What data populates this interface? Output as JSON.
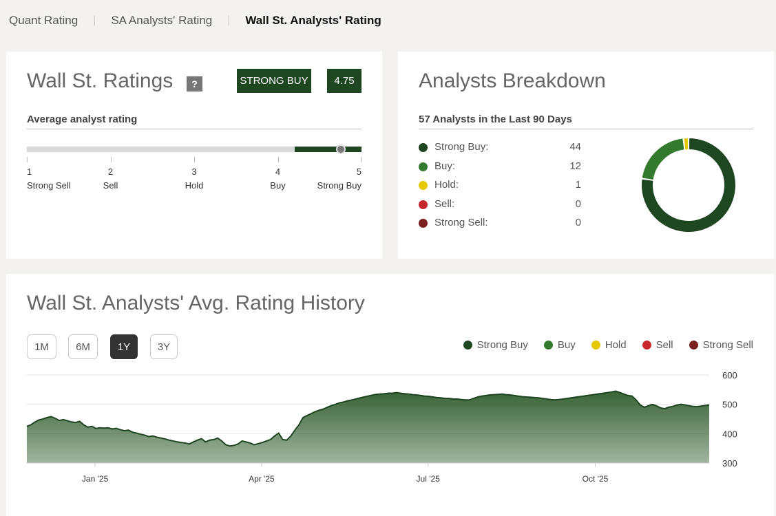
{
  "tabs": [
    {
      "label": "Quant Rating",
      "active": false
    },
    {
      "label": "SA Analysts' Rating",
      "active": false
    },
    {
      "label": "Wall St. Analysts' Rating",
      "active": true
    }
  ],
  "ratings": {
    "title": "Wall St. Ratings",
    "help": "?",
    "rating_label": "STRONG BUY",
    "rating_score": "4.75",
    "score_value": 4.75,
    "avg_heading": "Average analyst rating",
    "scale": [
      {
        "num": "1",
        "name": "Strong Sell"
      },
      {
        "num": "2",
        "name": "Sell"
      },
      {
        "num": "3",
        "name": "Hold"
      },
      {
        "num": "4",
        "name": "Buy"
      },
      {
        "num": "5",
        "name": "Strong Buy"
      }
    ],
    "fill_start": 4.2,
    "fill_color": "#1e4620"
  },
  "breakdown": {
    "title": "Analysts Breakdown",
    "heading": "57 Analysts in the Last 90 Days",
    "items": [
      {
        "label": "Strong Buy:",
        "count": "44",
        "value": 44,
        "color": "#1e4620"
      },
      {
        "label": "Buy:",
        "count": "12",
        "value": 12,
        "color": "#337a2f"
      },
      {
        "label": "Hold:",
        "count": "1",
        "value": 1,
        "color": "#e6c800"
      },
      {
        "label": "Sell:",
        "count": "0",
        "value": 0,
        "color": "#c8282d"
      },
      {
        "label": "Strong Sell:",
        "count": "0",
        "value": 0,
        "color": "#7a2020"
      }
    ]
  },
  "history": {
    "title": "Wall St. Analysts' Avg. Rating History",
    "ranges": [
      {
        "label": "1M",
        "active": false
      },
      {
        "label": "6M",
        "active": false
      },
      {
        "label": "1Y",
        "active": true
      },
      {
        "label": "3Y",
        "active": false
      }
    ],
    "legend": [
      {
        "label": "Strong Buy",
        "color": "#1e4620"
      },
      {
        "label": "Buy",
        "color": "#337a2f"
      },
      {
        "label": "Hold",
        "color": "#e6c800"
      },
      {
        "label": "Sell",
        "color": "#c8282d"
      },
      {
        "label": "Strong Sell",
        "color": "#7a2020"
      }
    ]
  },
  "chart_data": {
    "type": "area",
    "title": "",
    "xlabel": "",
    "ylabel": "",
    "ylim": [
      300,
      600
    ],
    "yticks": [
      "600",
      "500",
      "400",
      "300"
    ],
    "xticks": [
      {
        "label": "Jan '25",
        "t": 0.1
      },
      {
        "label": "Apr '25",
        "t": 0.344
      },
      {
        "label": "Jul '25",
        "t": 0.588
      },
      {
        "label": "Oct '25",
        "t": 0.833
      }
    ],
    "grid": true,
    "series": [
      {
        "color": "#1e4620",
        "values": [
          425,
          430,
          440,
          447,
          450,
          455,
          458,
          452,
          445,
          448,
          444,
          440,
          438,
          442,
          430,
          422,
          425,
          418,
          420,
          419,
          420,
          416,
          418,
          414,
          410,
          412,
          405,
          402,
          398,
          395,
          390,
          392,
          388,
          385,
          382,
          378,
          375,
          372,
          370,
          368,
          365,
          372,
          378,
          383,
          372,
          378,
          380,
          385,
          375,
          362,
          358,
          360,
          365,
          375,
          372,
          368,
          362,
          366,
          370,
          375,
          380,
          392,
          402,
          380,
          378,
          392,
          412,
          430,
          455,
          462,
          468,
          475,
          480,
          484,
          490,
          496,
          500,
          505,
          508,
          512,
          515,
          518,
          522,
          525,
          528,
          531,
          534,
          535,
          536,
          538,
          538,
          540,
          538,
          536,
          535,
          533,
          532,
          530,
          528,
          527,
          525,
          523,
          522,
          520,
          520,
          518,
          518,
          516,
          515,
          515,
          520,
          525,
          528,
          530,
          532,
          533,
          534,
          535,
          533,
          532,
          530,
          528,
          526,
          525,
          524,
          523,
          522,
          520,
          518,
          516,
          515,
          516,
          518,
          520,
          522,
          524,
          526,
          528,
          530,
          532,
          534,
          536,
          538,
          540,
          542,
          545,
          540,
          535,
          530,
          528,
          515,
          498,
          490,
          495,
          500,
          495,
          488,
          485,
          490,
          493,
          497,
          500,
          498,
          495,
          493,
          492,
          494,
          496,
          498
        ]
      }
    ]
  }
}
